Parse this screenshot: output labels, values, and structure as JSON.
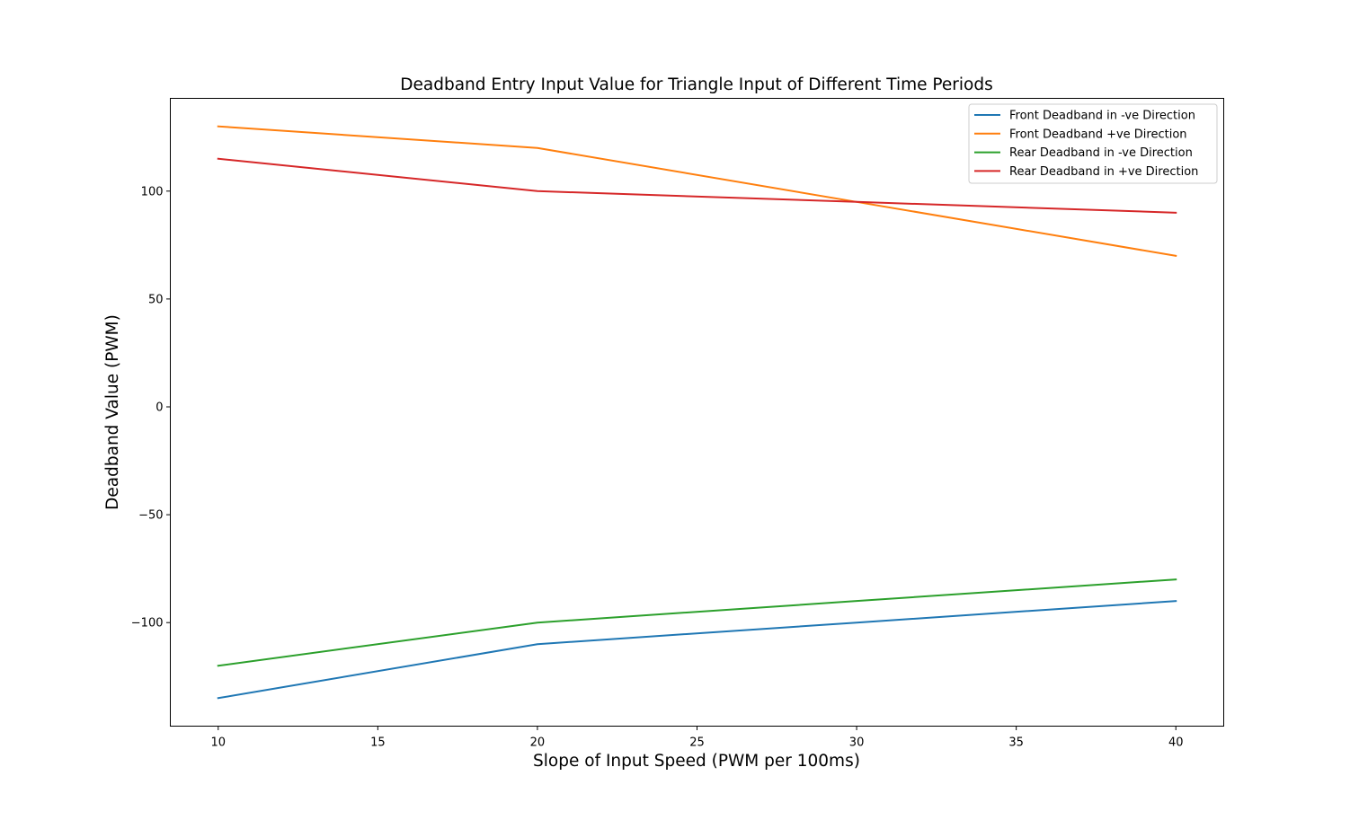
{
  "chart_data": {
    "type": "line",
    "title": "Deadband Entry Input Value for Triangle Input of Different Time Periods",
    "xlabel": "Slope of Input Speed (PWM per 100ms)",
    "ylabel": "Deadband Value (PWM)",
    "x": [
      10,
      20,
      30,
      40
    ],
    "xlim": [
      8.5,
      41.5
    ],
    "ylim": [
      -148,
      143
    ],
    "xticks": [
      10,
      15,
      20,
      25,
      30,
      35,
      40
    ],
    "yticks": [
      -100,
      -50,
      0,
      50,
      100
    ],
    "xtick_labels": [
      "10",
      "15",
      "20",
      "25",
      "30",
      "35",
      "40"
    ],
    "ytick_labels": [
      "−100",
      "−50",
      "0",
      "50",
      "100"
    ],
    "grid": false,
    "legend_position": "upper right",
    "series": [
      {
        "name": "Front Deadband in -ve Direction",
        "color": "#1f77b4",
        "values": [
          -135,
          -110,
          -100,
          -90
        ]
      },
      {
        "name": "Front Deadband +ve Direction",
        "color": "#ff7f0e",
        "values": [
          130,
          120,
          95,
          70
        ]
      },
      {
        "name": "Rear Deadband in -ve Direction",
        "color": "#2ca02c",
        "values": [
          -120,
          -100,
          -90,
          -80
        ]
      },
      {
        "name": "Rear Deadband in +ve Direction",
        "color": "#d62728",
        "values": [
          115,
          100,
          95,
          90
        ]
      }
    ]
  }
}
